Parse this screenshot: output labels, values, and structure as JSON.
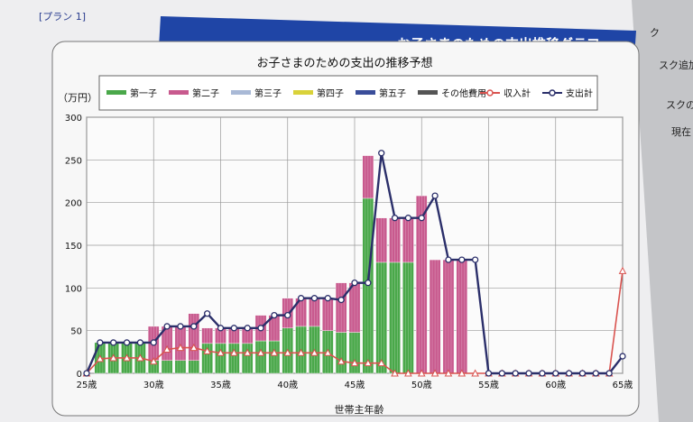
{
  "plan_label": "[プラン 1]",
  "banner_title": "お子さまのための支出推移グラフ",
  "side_text": [
    "ク",
    "スク追加",
    "スクの",
    "現在"
  ],
  "colors": {
    "banner": "#1f45a6",
    "child1": "#4aa84a",
    "child2": "#c85a8e",
    "child3": "#a9b9d6",
    "child4": "#d9d23a",
    "child5": "#3a4d9a",
    "other": "#555555",
    "income": "#d9534f",
    "expense": "#2b2f6a"
  },
  "chart_data": {
    "type": "bar",
    "title": "お子さまのための支出の推移予想",
    "ylabel": "（万円）",
    "xlabel": "世帯主年齢",
    "ylim": [
      0,
      300
    ],
    "yticks": [
      0,
      50,
      100,
      150,
      200,
      250,
      300
    ],
    "xlim": [
      25,
      65
    ],
    "xticks": [
      25,
      30,
      35,
      40,
      45,
      50,
      55,
      60,
      65
    ],
    "xtick_suffix": "歳",
    "grid": true,
    "legend_position": "top",
    "legend": [
      {
        "label": "第一子",
        "kind": "bar",
        "color_key": "child1"
      },
      {
        "label": "第二子",
        "kind": "bar",
        "color_key": "child2"
      },
      {
        "label": "第三子",
        "kind": "bar",
        "color_key": "child3"
      },
      {
        "label": "第四子",
        "kind": "bar",
        "color_key": "child4"
      },
      {
        "label": "第五子",
        "kind": "bar",
        "color_key": "child5"
      },
      {
        "label": "その他費用",
        "kind": "bar",
        "color_key": "other"
      },
      {
        "label": "収入計",
        "kind": "line",
        "color_key": "income"
      },
      {
        "label": "支出計",
        "kind": "line",
        "color_key": "expense"
      }
    ],
    "ages": [
      25,
      26,
      27,
      28,
      29,
      30,
      31,
      32,
      33,
      34,
      35,
      36,
      37,
      38,
      39,
      40,
      41,
      42,
      43,
      44,
      45,
      46,
      47,
      48,
      49,
      50,
      51,
      52,
      53,
      54,
      55,
      56,
      57,
      58,
      59,
      60,
      61,
      62,
      63,
      64,
      65
    ],
    "series": [
      {
        "name": "第一子",
        "color_key": "child1",
        "values": [
          0,
          36,
          36,
          36,
          36,
          15,
          15,
          15,
          15,
          35,
          35,
          35,
          35,
          38,
          38,
          53,
          55,
          55,
          50,
          48,
          48,
          205,
          130,
          130,
          130,
          0,
          0,
          0,
          0,
          0,
          0,
          0,
          0,
          0,
          0,
          0,
          0,
          0,
          0,
          0,
          0
        ]
      },
      {
        "name": "第二子",
        "color_key": "child2",
        "values": [
          0,
          0,
          0,
          0,
          0,
          40,
          40,
          40,
          55,
          18,
          18,
          18,
          18,
          30,
          30,
          35,
          33,
          33,
          38,
          58,
          58,
          50,
          52,
          52,
          52,
          208,
          133,
          133,
          133,
          0,
          0,
          0,
          0,
          0,
          0,
          0,
          0,
          0,
          0,
          0,
          0
        ]
      },
      {
        "name": "収入計",
        "color_key": "income",
        "values": [
          0,
          17,
          18,
          18,
          18,
          14,
          28,
          30,
          30,
          26,
          24,
          24,
          24,
          24,
          24,
          24,
          24,
          24,
          24,
          14,
          12,
          12,
          12,
          0,
          0,
          0,
          0,
          0,
          0,
          0,
          0,
          0,
          0,
          0,
          0,
          0,
          0,
          0,
          0,
          0,
          120
        ]
      },
      {
        "name": "支出計",
        "color_key": "expense",
        "values": [
          0,
          36,
          36,
          36,
          36,
          36,
          55,
          55,
          55,
          70,
          53,
          53,
          53,
          53,
          68,
          68,
          88,
          88,
          88,
          86,
          106,
          106,
          258,
          182,
          182,
          182,
          208,
          133,
          133,
          133,
          0,
          0,
          0,
          0,
          0,
          0,
          0,
          0,
          0,
          0,
          20
        ]
      }
    ]
  }
}
